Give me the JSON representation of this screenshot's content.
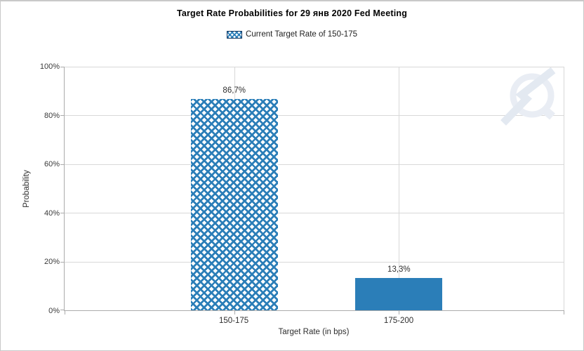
{
  "window": {
    "background": "#ffffff",
    "border_color": "#c9c9c9"
  },
  "legend": {
    "label": "Current Target Rate of 150-175",
    "swatch_style": "blue-crosshatch",
    "swatch_border_color": "#17375e"
  },
  "watermark_icon": "q-lightning-logo",
  "colors": {
    "bar_blue": "#2b7eb8",
    "gridline": "#d8d8d8",
    "axis_line": "#ababab"
  },
  "chart_data": {
    "type": "bar",
    "title": "Target Rate Probabilities for 29 янв 2020 Fed Meeting",
    "categories": [
      "150-175",
      "175-200"
    ],
    "values": [
      86.7,
      13.3
    ],
    "value_labels": [
      "86,7%",
      "13,3%"
    ],
    "series": [
      {
        "name": "Current Target Rate of 150-175",
        "values": [
          86.7,
          13.3
        ],
        "bar_styles": [
          "crosshatch",
          "solid"
        ]
      }
    ],
    "xlabel": "Target Rate (in bps)",
    "ylabel": "Probability",
    "ylim": [
      0,
      100
    ],
    "ytick_labels": [
      "0%",
      "20%",
      "40%",
      "60%",
      "80%",
      "100%"
    ],
    "grid": true,
    "legend_position": "top"
  }
}
